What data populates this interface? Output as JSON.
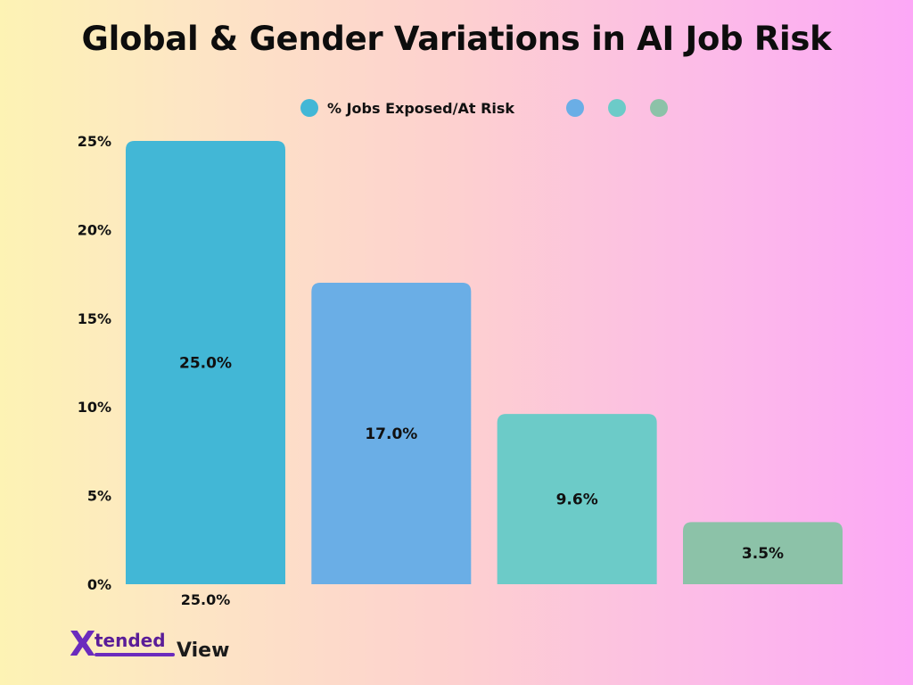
{
  "chart_data": {
    "type": "bar",
    "title": "Global & Gender Variations in AI Job Risk",
    "legend": [
      {
        "label": "% Jobs Exposed/At Risk",
        "color": "#42b7d6"
      },
      {
        "label": "",
        "color": "#6aaee6"
      },
      {
        "label": "",
        "color": "#6ccbc8"
      },
      {
        "label": "",
        "color": "#8cc2a8"
      }
    ],
    "categories": [
      "25.0%",
      "",
      "",
      ""
    ],
    "values": [
      25.0,
      17.0,
      9.6,
      3.5
    ],
    "value_labels": [
      "25.0%",
      "17.0%",
      "9.6%",
      "3.5%"
    ],
    "colors": [
      "#42b7d6",
      "#6aaee6",
      "#6ccbc8",
      "#8cc2a8"
    ],
    "ylim": [
      0,
      25
    ],
    "yticks": [
      0,
      5,
      10,
      15,
      20,
      25
    ],
    "ytick_labels": [
      "0%",
      "5%",
      "10%",
      "15%",
      "20%",
      "25%"
    ],
    "xlabel": "",
    "ylabel": "",
    "grid": false,
    "legend_position": "top-center"
  },
  "branding": {
    "logo_text_x": "X",
    "logo_text_tended": "tended",
    "logo_text_view": "View"
  }
}
